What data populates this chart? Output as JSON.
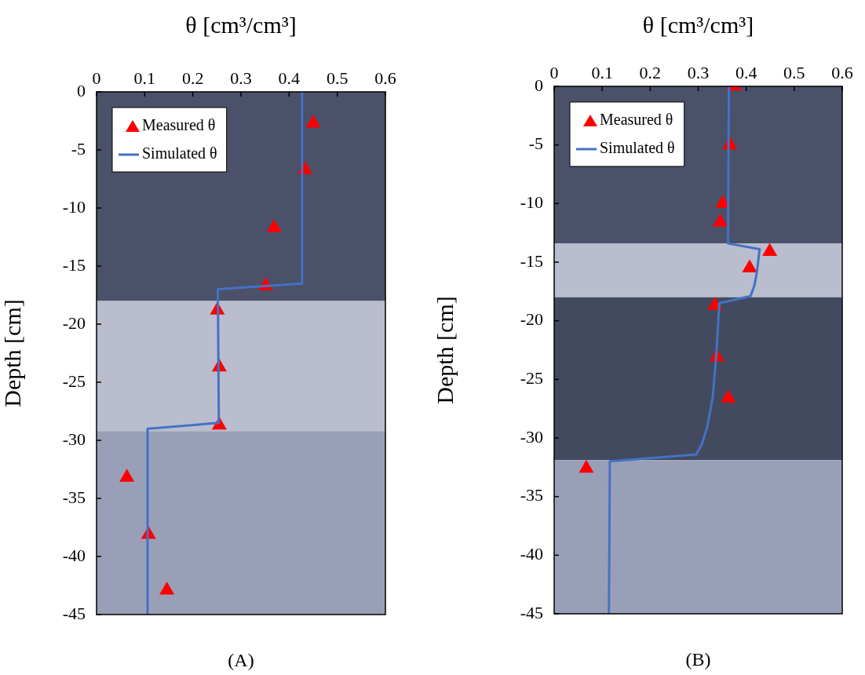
{
  "chart_data": [
    {
      "type": "scatter",
      "xlabel": "θ [cm³/cm³]",
      "ylabel": "Depth [cm]",
      "annotations": [
        "(A)"
      ],
      "xlim": [
        0,
        0.6
      ],
      "xticks": [
        0,
        0.1,
        0.2,
        0.3,
        0.4,
        0.5,
        0.6
      ],
      "ylim": [
        -45,
        0
      ],
      "yticks": [
        0,
        -5,
        -10,
        -15,
        -20,
        -25,
        -30,
        -35,
        -40,
        -45
      ],
      "grid": false,
      "legend": "top left",
      "bands": [
        {
          "axis": "y",
          "from": 0,
          "to": -18,
          "color": "#4a5169"
        },
        {
          "axis": "y",
          "from": -18,
          "to": -29.2,
          "color": "#b9bdce"
        },
        {
          "axis": "y",
          "from": -29.2,
          "to": -45,
          "color": "#9a9fb8"
        }
      ],
      "series": [
        {
          "name": "Measured θ",
          "marker": "triangle",
          "color": "#ff0000",
          "x": [
            0.45,
            0.433,
            0.369,
            0.351,
            0.251,
            0.255,
            0.255,
            0.063,
            0.108,
            0.146
          ],
          "values": [
            -2.7,
            -6.7,
            -11.7,
            -16.7,
            -18.8,
            -23.7,
            -28.7,
            -33.2,
            -38.1,
            -42.9
          ]
        },
        {
          "name": "Simulated θ",
          "type": "line",
          "marker": "none",
          "color": "#4472c4",
          "x": [
            0.427,
            0.427,
            0.252,
            0.254,
            0.106,
            0.106
          ],
          "values": [
            0,
            -16.5,
            -17,
            -28.5,
            -29,
            -45
          ]
        }
      ]
    },
    {
      "type": "scatter",
      "xlabel": "θ [cm³/cm³]",
      "ylabel": "Depth [cm]",
      "annotations": [
        "(B)"
      ],
      "xlim": [
        0,
        0.6
      ],
      "xticks": [
        0,
        0.1,
        0.2,
        0.3,
        0.4,
        0.5,
        0.6
      ],
      "ylim": [
        -45,
        0
      ],
      "yticks": [
        0,
        -5,
        -10,
        -15,
        -20,
        -25,
        -30,
        -35,
        -40,
        -45
      ],
      "grid": false,
      "legend": "top left",
      "bands": [
        {
          "axis": "y",
          "from": 0,
          "to": -13.4,
          "color": "#4a5169"
        },
        {
          "axis": "y",
          "from": -13.4,
          "to": -18,
          "color": "#b9bdce"
        },
        {
          "axis": "y",
          "from": -18,
          "to": -31.9,
          "color": "#434a60"
        },
        {
          "axis": "y",
          "from": -31.9,
          "to": -45,
          "color": "#9a9fb8"
        }
      ],
      "series": [
        {
          "name": "Measured θ",
          "marker": "triangle",
          "color": "#ff0000",
          "x": [
            0.375,
            0.366,
            0.351,
            0.346,
            0.449,
            0.407,
            0.335,
            0.339,
            0.363,
            0.067
          ],
          "values": [
            0,
            -5,
            -10,
            -11.6,
            -14.1,
            -15.5,
            -18.7,
            -23.1,
            -26.6,
            -32.6
          ]
        },
        {
          "name": "Simulated θ",
          "type": "line",
          "marker": "none",
          "color": "#4472c4",
          "x": [
            0.364,
            0.362,
            0.428,
            0.422,
            0.417,
            0.409,
            0.344,
            0.341,
            0.337,
            0.33,
            0.319,
            0.308,
            0.296,
            0.116,
            0.114
          ],
          "values": [
            0,
            -13.4,
            -13.9,
            -15.9,
            -17,
            -17.9,
            -18.5,
            -20.6,
            -23.3,
            -26.6,
            -29,
            -30.5,
            -31.4,
            -32,
            -45
          ]
        }
      ]
    }
  ]
}
